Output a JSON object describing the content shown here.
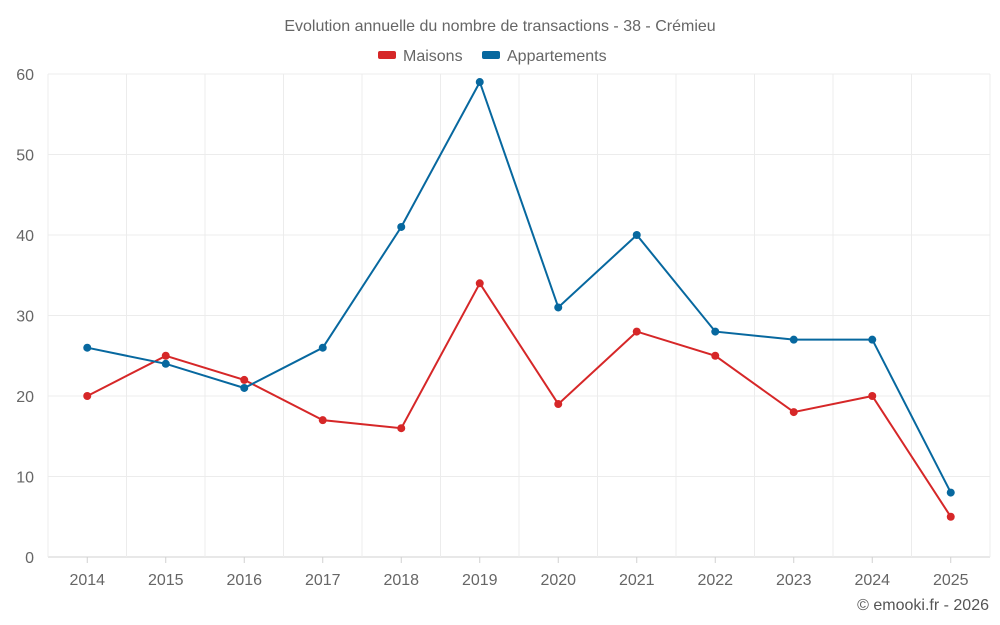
{
  "chart_data": {
    "type": "line",
    "title": "Evolution annuelle du nombre de transactions - 38 - Crémieu",
    "categories": [
      "2014",
      "2015",
      "2016",
      "2017",
      "2018",
      "2019",
      "2020",
      "2021",
      "2022",
      "2023",
      "2024",
      "2025"
    ],
    "series": [
      {
        "name": "Maisons",
        "color": "#d62728",
        "values": [
          20,
          25,
          22,
          17,
          16,
          34,
          19,
          28,
          25,
          18,
          20,
          5
        ]
      },
      {
        "name": "Appartements",
        "color": "#07689f",
        "values": [
          26,
          24,
          21,
          26,
          41,
          59,
          31,
          40,
          28,
          27,
          27,
          8
        ]
      }
    ],
    "ylim": [
      0,
      60
    ],
    "yticks": [
      "0",
      "10",
      "20",
      "30",
      "40",
      "50",
      "60"
    ],
    "legend_position": "top-center",
    "grid": true,
    "credit": "© emooki.fr - 2026"
  }
}
